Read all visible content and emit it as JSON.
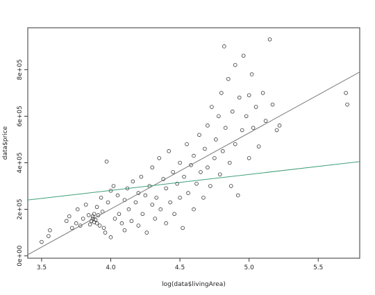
{
  "chart_data": {
    "type": "scatter",
    "xlabel": "log(data$livingArea)",
    "ylabel": "data$price",
    "xlim": [
      3.4,
      5.8
    ],
    "ylim": [
      -10000,
      980000
    ],
    "xticks": [
      {
        "value": 3.5,
        "label": "3.5"
      },
      {
        "value": 4.0,
        "label": "4.0"
      },
      {
        "value": 4.5,
        "label": "4.5"
      },
      {
        "value": 5.0,
        "label": "5.0"
      },
      {
        "value": 5.5,
        "label": "5.5"
      }
    ],
    "yticks": [
      {
        "value": 0,
        "label": "0e+00"
      },
      {
        "value": 200000,
        "label": "2e+05"
      },
      {
        "value": 400000,
        "label": "4e+05"
      },
      {
        "value": 600000,
        "label": "6e+05"
      },
      {
        "value": 800000,
        "label": "8e+05"
      }
    ],
    "grid": false,
    "points_color": "#333333",
    "lines": [
      {
        "x": [
          3.4,
          5.8
        ],
        "y": [
          5000,
          790000
        ],
        "color": "#7a7a7a"
      },
      {
        "x": [
          3.4,
          5.8
        ],
        "y": [
          240000,
          405000
        ],
        "color": "#3f9f78"
      }
    ],
    "points": [
      {
        "x": 3.5,
        "y": 60000
      },
      {
        "x": 3.55,
        "y": 85000
      },
      {
        "x": 3.56,
        "y": 110000
      },
      {
        "x": 3.68,
        "y": 150000
      },
      {
        "x": 3.7,
        "y": 170000
      },
      {
        "x": 3.72,
        "y": 120000
      },
      {
        "x": 3.75,
        "y": 140000
      },
      {
        "x": 3.76,
        "y": 200000
      },
      {
        "x": 3.78,
        "y": 130000
      },
      {
        "x": 3.8,
        "y": 160000
      },
      {
        "x": 3.82,
        "y": 220000
      },
      {
        "x": 3.84,
        "y": 175000
      },
      {
        "x": 3.85,
        "y": 135000
      },
      {
        "x": 3.86,
        "y": 150000
      },
      {
        "x": 3.87,
        "y": 160000
      },
      {
        "x": 3.87,
        "y": 170000
      },
      {
        "x": 3.88,
        "y": 145000
      },
      {
        "x": 3.88,
        "y": 180000
      },
      {
        "x": 3.89,
        "y": 155000
      },
      {
        "x": 3.9,
        "y": 140000
      },
      {
        "x": 3.9,
        "y": 210000
      },
      {
        "x": 3.91,
        "y": 175000
      },
      {
        "x": 3.92,
        "y": 130000
      },
      {
        "x": 3.93,
        "y": 250000
      },
      {
        "x": 3.94,
        "y": 190000
      },
      {
        "x": 3.95,
        "y": 120000
      },
      {
        "x": 3.96,
        "y": 100000
      },
      {
        "x": 3.97,
        "y": 405000
      },
      {
        "x": 3.98,
        "y": 230000
      },
      {
        "x": 4.0,
        "y": 80000
      },
      {
        "x": 4.0,
        "y": 280000
      },
      {
        "x": 4.02,
        "y": 300000
      },
      {
        "x": 4.03,
        "y": 160000
      },
      {
        "x": 4.05,
        "y": 260000
      },
      {
        "x": 4.06,
        "y": 180000
      },
      {
        "x": 4.08,
        "y": 140000
      },
      {
        "x": 4.1,
        "y": 240000
      },
      {
        "x": 4.1,
        "y": 110000
      },
      {
        "x": 4.12,
        "y": 290000
      },
      {
        "x": 4.13,
        "y": 200000
      },
      {
        "x": 4.15,
        "y": 150000
      },
      {
        "x": 4.16,
        "y": 320000
      },
      {
        "x": 4.18,
        "y": 230000
      },
      {
        "x": 4.2,
        "y": 130000
      },
      {
        "x": 4.2,
        "y": 270000
      },
      {
        "x": 4.22,
        "y": 340000
      },
      {
        "x": 4.23,
        "y": 180000
      },
      {
        "x": 4.25,
        "y": 260000
      },
      {
        "x": 4.26,
        "y": 100000
      },
      {
        "x": 4.28,
        "y": 300000
      },
      {
        "x": 4.3,
        "y": 220000
      },
      {
        "x": 4.3,
        "y": 380000
      },
      {
        "x": 4.32,
        "y": 160000
      },
      {
        "x": 4.33,
        "y": 250000
      },
      {
        "x": 4.35,
        "y": 420000
      },
      {
        "x": 4.36,
        "y": 200000
      },
      {
        "x": 4.38,
        "y": 330000
      },
      {
        "x": 4.4,
        "y": 140000
      },
      {
        "x": 4.4,
        "y": 290000
      },
      {
        "x": 4.42,
        "y": 450000
      },
      {
        "x": 4.43,
        "y": 230000
      },
      {
        "x": 4.45,
        "y": 360000
      },
      {
        "x": 4.46,
        "y": 180000
      },
      {
        "x": 4.48,
        "y": 310000
      },
      {
        "x": 4.5,
        "y": 400000
      },
      {
        "x": 4.5,
        "y": 250000
      },
      {
        "x": 4.52,
        "y": 120000
      },
      {
        "x": 4.53,
        "y": 340000
      },
      {
        "x": 4.55,
        "y": 480000
      },
      {
        "x": 4.56,
        "y": 270000
      },
      {
        "x": 4.58,
        "y": 390000
      },
      {
        "x": 4.6,
        "y": 200000
      },
      {
        "x": 4.6,
        "y": 430000
      },
      {
        "x": 4.62,
        "y": 310000
      },
      {
        "x": 4.64,
        "y": 520000
      },
      {
        "x": 4.65,
        "y": 360000
      },
      {
        "x": 4.67,
        "y": 250000
      },
      {
        "x": 4.68,
        "y": 460000
      },
      {
        "x": 4.7,
        "y": 380000
      },
      {
        "x": 4.7,
        "y": 560000
      },
      {
        "x": 4.72,
        "y": 300000
      },
      {
        "x": 4.73,
        "y": 640000
      },
      {
        "x": 4.75,
        "y": 420000
      },
      {
        "x": 4.76,
        "y": 500000
      },
      {
        "x": 4.78,
        "y": 600000
      },
      {
        "x": 4.79,
        "y": 350000
      },
      {
        "x": 4.8,
        "y": 700000
      },
      {
        "x": 4.81,
        "y": 450000
      },
      {
        "x": 4.82,
        "y": 900000
      },
      {
        "x": 4.83,
        "y": 550000
      },
      {
        "x": 4.85,
        "y": 760000
      },
      {
        "x": 4.86,
        "y": 400000
      },
      {
        "x": 4.87,
        "y": 300000
      },
      {
        "x": 4.88,
        "y": 620000
      },
      {
        "x": 4.9,
        "y": 820000
      },
      {
        "x": 4.9,
        "y": 480000
      },
      {
        "x": 4.92,
        "y": 260000
      },
      {
        "x": 4.93,
        "y": 680000
      },
      {
        "x": 4.95,
        "y": 540000
      },
      {
        "x": 4.96,
        "y": 860000
      },
      {
        "x": 4.98,
        "y": 600000
      },
      {
        "x": 5.0,
        "y": 690000
      },
      {
        "x": 5.0,
        "y": 420000
      },
      {
        "x": 5.02,
        "y": 780000
      },
      {
        "x": 5.03,
        "y": 550000
      },
      {
        "x": 5.05,
        "y": 640000
      },
      {
        "x": 5.07,
        "y": 470000
      },
      {
        "x": 5.1,
        "y": 700000
      },
      {
        "x": 5.12,
        "y": 580000
      },
      {
        "x": 5.15,
        "y": 930000
      },
      {
        "x": 5.17,
        "y": 650000
      },
      {
        "x": 5.2,
        "y": 540000
      },
      {
        "x": 5.22,
        "y": 560000
      },
      {
        "x": 5.7,
        "y": 700000
      },
      {
        "x": 5.71,
        "y": 650000
      }
    ]
  }
}
